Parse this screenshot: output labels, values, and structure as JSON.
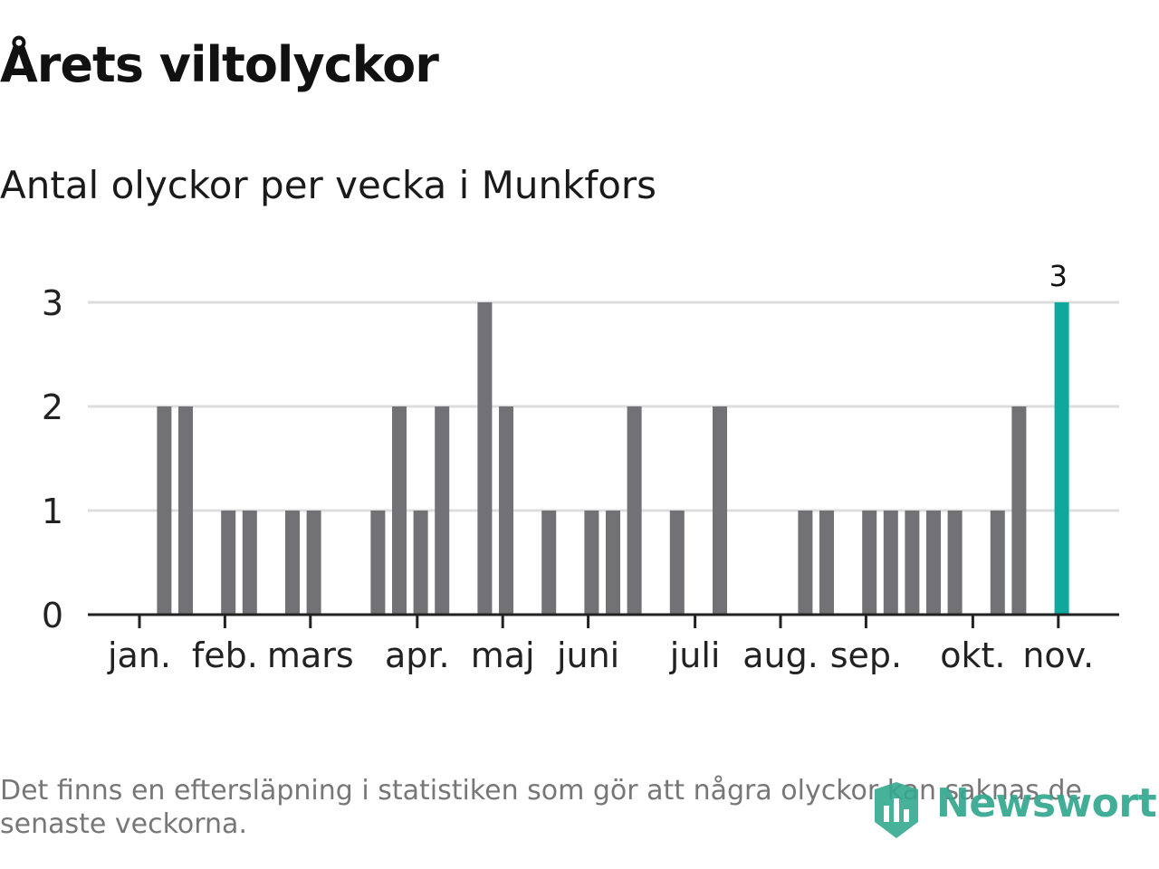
{
  "header": {
    "title": "Årets viltolyckor",
    "subtitle": "Antal olyckor per vecka i Munkfors"
  },
  "footer": {
    "note": "Det finns en eftersläpning i statistiken som gör att några olyckor kan saknas de senaste veckorna.",
    "brand": "Newsworthy",
    "brand_icon": "newsworthy-logo-icon"
  },
  "colors": {
    "bar": "#727176",
    "highlight": "#0ea89c",
    "grid": "#dddddd",
    "axis": "#222222",
    "brand": "#34a88f"
  },
  "chart_data": {
    "type": "bar",
    "title": "Antal olyckor per vecka i Munkfors",
    "xlabel": "",
    "ylabel": "",
    "ylim": [
      0,
      3
    ],
    "yticks": [
      0,
      1,
      2,
      3
    ],
    "grid": true,
    "x": [
      1,
      2,
      3,
      4,
      5,
      6,
      7,
      8,
      9,
      10,
      11,
      12,
      13,
      14,
      15,
      16,
      17,
      18,
      19,
      20,
      21,
      22,
      23,
      24,
      25,
      26,
      27,
      28,
      29,
      30,
      31,
      32,
      33,
      34,
      35,
      36,
      37,
      38,
      39,
      40,
      41,
      42,
      43,
      44,
      45
    ],
    "values": [
      0,
      2,
      2,
      0,
      1,
      1,
      0,
      1,
      1,
      0,
      0,
      1,
      2,
      1,
      2,
      0,
      3,
      2,
      0,
      1,
      0,
      1,
      1,
      2,
      0,
      1,
      0,
      2,
      0,
      0,
      0,
      1,
      1,
      0,
      1,
      1,
      1,
      1,
      1,
      0,
      1,
      2,
      0,
      3,
      0
    ],
    "highlight_index": 43,
    "highlight_label": "3",
    "month_labels": [
      {
        "label": "jan.",
        "week": 1
      },
      {
        "label": "feb.",
        "week": 5
      },
      {
        "label": "mars",
        "week": 9
      },
      {
        "label": "apr.",
        "week": 14
      },
      {
        "label": "maj",
        "week": 18
      },
      {
        "label": "juni",
        "week": 22
      },
      {
        "label": "juli",
        "week": 27
      },
      {
        "label": "aug.",
        "week": 31
      },
      {
        "label": "sep.",
        "week": 35
      },
      {
        "label": "okt.",
        "week": 40
      },
      {
        "label": "nov.",
        "week": 44
      }
    ]
  }
}
